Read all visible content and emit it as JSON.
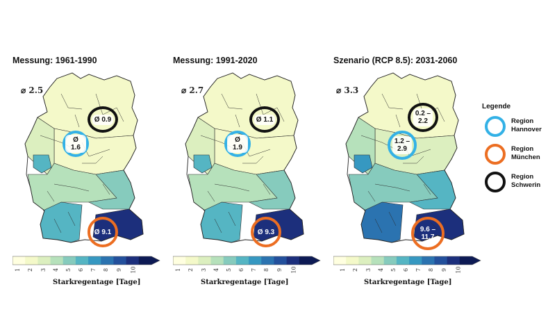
{
  "colors": {
    "scale": [
      "#ffffe0",
      "#f4f9c9",
      "#dcefbf",
      "#b6e1bb",
      "#86cbbd",
      "#55b5c3",
      "#3698c1",
      "#2b73b0",
      "#23509c",
      "#1c2f7c",
      "#0d1a54"
    ],
    "region_hannover": "#33b1e6",
    "region_muenchen": "#ec6e22",
    "region_schwerin": "#111111"
  },
  "panels": [
    {
      "title": "Messung: 1961-1990",
      "avg": "⌀ 2.5",
      "hannover": "Ø 1.6",
      "muenchen": "Ø 9.1",
      "schwerin": "Ø 0.9",
      "fill_values": {
        "north": 1,
        "center": 1,
        "west": 2,
        "nrw_hot": 5,
        "south": 3,
        "bavaria_sw": 5,
        "bavaria_se": 9,
        "bavaria_e": 4
      }
    },
    {
      "title": "Messung: 1991-2020",
      "avg": "⌀ 2.7",
      "hannover": "Ø 1.9",
      "muenchen": "Ø 9.3",
      "schwerin": "Ø 1.1",
      "fill_values": {
        "north": 1,
        "center": 1,
        "west": 2,
        "nrw_hot": 5,
        "south": 3,
        "bavaria_sw": 5,
        "bavaria_se": 9,
        "bavaria_e": 4
      }
    },
    {
      "title": "Szenario (RCP 8.5): 2031-2060",
      "avg": "⌀ 3.3",
      "hannover": "1.2 –\n2.9",
      "muenchen": "9.6 –\n11.7",
      "schwerin": "0.2 –\n2.2",
      "fill_values": {
        "north": 1,
        "center": 2,
        "west": 3,
        "nrw_hot": 6,
        "south": 4,
        "bavaria_sw": 7,
        "bavaria_se": 9,
        "bavaria_e": 5
      }
    }
  ],
  "colorbar": {
    "ticks": [
      "1",
      "2",
      "3",
      "4",
      "5",
      "6",
      "7",
      "8",
      "9",
      "10"
    ],
    "label": "Starkregentage [Tage]"
  },
  "legend": {
    "title": "Legende",
    "items": [
      {
        "label": "Region\nHannover",
        "color": "#33b1e6"
      },
      {
        "label": "Region\nMünchen",
        "color": "#ec6e22"
      },
      {
        "label": "Region\nSchwerin",
        "color": "#111111"
      }
    ]
  }
}
